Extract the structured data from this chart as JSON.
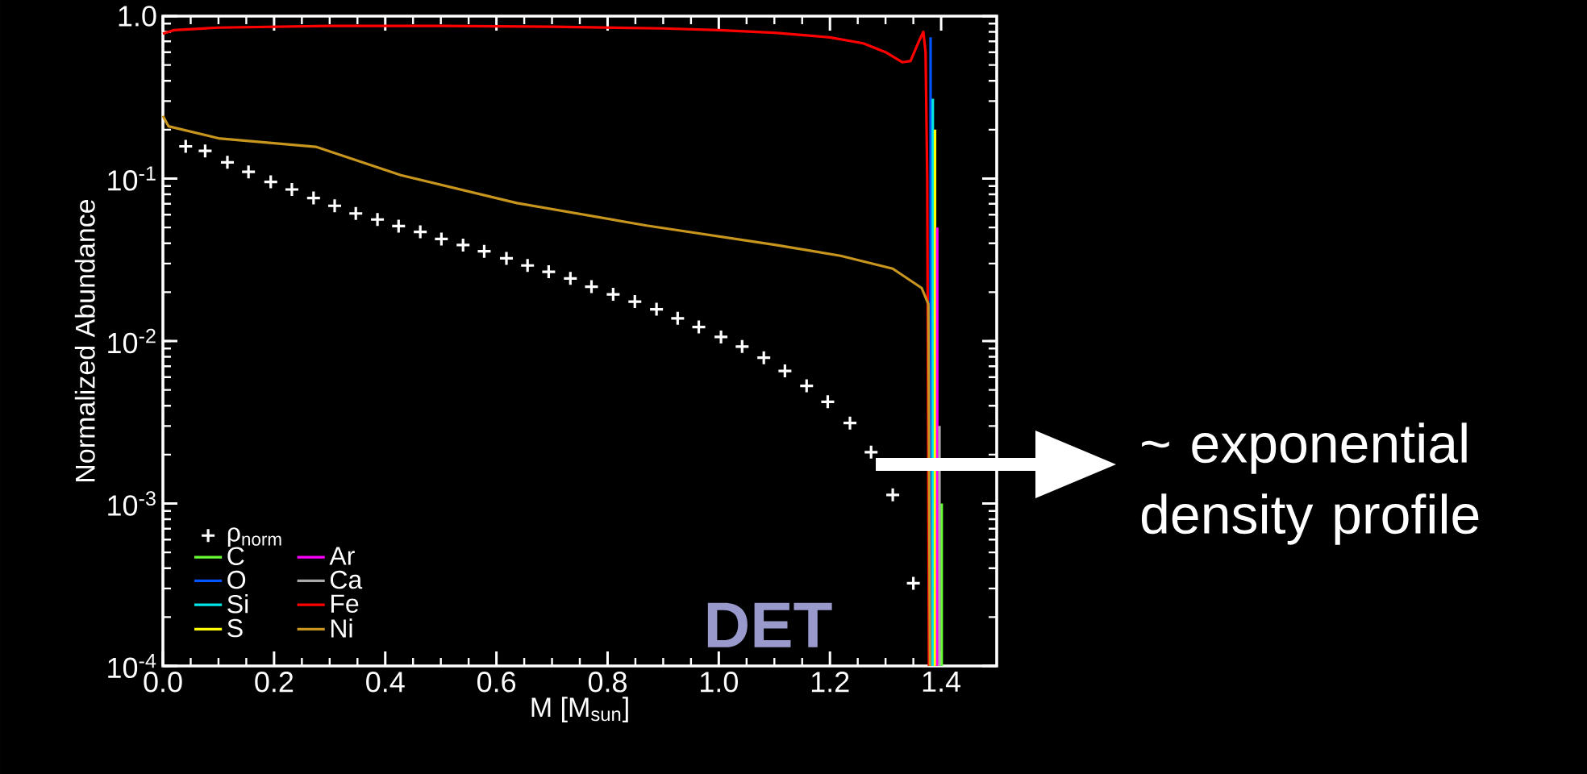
{
  "chart_data": {
    "type": "line",
    "xlabel": "M [M$_{sun}$]",
    "ylabel": "Normalized Abundance",
    "xlim": [
      0,
      1.5
    ],
    "ylim": [
      0.0001,
      1
    ],
    "log": "y",
    "legend": "bottom left",
    "xticks": [
      {
        "value": 0,
        "label": "0.0"
      },
      {
        "value": 0.2,
        "label": "0.2"
      },
      {
        "value": 0.4,
        "label": "0.4"
      },
      {
        "value": 0.6,
        "label": "0.6"
      },
      {
        "value": 0.8,
        "label": "0.8"
      },
      {
        "value": 1,
        "label": "1.0"
      },
      {
        "value": 1.2,
        "label": "1.2"
      },
      {
        "value": 1.4,
        "label": "1.4"
      }
    ],
    "yticks": [
      {
        "value": 0.0001,
        "label": "10$^{-4}$"
      },
      {
        "value": 0.001,
        "label": "10$^{-3}$"
      },
      {
        "value": 0.01,
        "label": "10$^{-2}$"
      },
      {
        "value": 0.1,
        "label": "10$^{-1}$"
      },
      {
        "value": 1,
        "label": "1.0"
      }
    ],
    "annotations": [
      "DET",
      "~ exponential density profile"
    ],
    "series": [
      {
        "name": "ρ$_{norm}$",
        "type": "scatter",
        "marker": "cross",
        "color": "#ffffff",
        "x": [
          0.041,
          0.076,
          0.116,
          0.154,
          0.194,
          0.232,
          0.271,
          0.309,
          0.347,
          0.386,
          0.424,
          0.463,
          0.501,
          0.54,
          0.578,
          0.618,
          0.656,
          0.694,
          0.733,
          0.771,
          0.81,
          0.849,
          0.888,
          0.926,
          0.964,
          1.004,
          1.042,
          1.081,
          1.119,
          1.158,
          1.196,
          1.236,
          1.274,
          1.313,
          1.35
        ],
        "values": [
          0.158,
          0.148,
          0.126,
          0.11,
          0.0955,
          0.0857,
          0.076,
          0.068,
          0.061,
          0.056,
          0.051,
          0.047,
          0.0425,
          0.039,
          0.0357,
          0.0323,
          0.0292,
          0.0267,
          0.0243,
          0.0216,
          0.0194,
          0.0175,
          0.0157,
          0.0138,
          0.0122,
          0.0106,
          0.00925,
          0.0079,
          0.00655,
          0.0053,
          0.00423,
          0.00313,
          0.00207,
          0.00113,
          0.000323
        ]
      },
      {
        "name": "C",
        "color": "#66ff33",
        "x": [
          1.401,
          1.401
        ],
        "values": [
          0.0001,
          0.001
        ]
      },
      {
        "name": "O",
        "color": "#0055ff",
        "x": [
          1.381,
          1.381
        ],
        "values": [
          0.0001,
          0.74
        ]
      },
      {
        "name": "Si",
        "color": "#00e5e5",
        "x": [
          1.385,
          1.385
        ],
        "values": [
          0.0001,
          0.31
        ]
      },
      {
        "name": "S",
        "color": "#ffff00",
        "x": [
          1.389,
          1.389
        ],
        "values": [
          0.0001,
          0.2
        ]
      },
      {
        "name": "Ar",
        "color": "#ff00ff",
        "x": [
          1.393,
          1.393
        ],
        "values": [
          0.0001,
          0.05
        ]
      },
      {
        "name": "Ca",
        "color": "#aaaaaa",
        "x": [
          1.397,
          1.397
        ],
        "values": [
          0.0001,
          0.003
        ]
      },
      {
        "name": "Fe",
        "color": "#ff0000",
        "x": [
          0,
          0.02,
          0.1,
          0.3,
          0.5,
          0.7,
          0.9,
          1.0,
          1.1,
          1.2,
          1.26,
          1.3,
          1.33,
          1.345,
          1.36,
          1.368,
          1.372,
          1.375,
          1.378
        ],
        "values": [
          0.78,
          0.82,
          0.85,
          0.87,
          0.87,
          0.86,
          0.84,
          0.82,
          0.79,
          0.74,
          0.68,
          0.6,
          0.52,
          0.53,
          0.7,
          0.8,
          0.6,
          0.1,
          0.0001
        ]
      },
      {
        "name": "Ni",
        "color": "#c8961e",
        "x": [
          0,
          0.01,
          0.1,
          0.275,
          0.428,
          0.637,
          0.87,
          1.103,
          1.219,
          1.313,
          1.365,
          1.377,
          1.38
        ],
        "values": [
          0.243,
          0.21,
          0.177,
          0.157,
          0.105,
          0.0707,
          0.0514,
          0.039,
          0.0335,
          0.0279,
          0.0212,
          0.0169,
          0.0001
        ]
      }
    ]
  }
}
